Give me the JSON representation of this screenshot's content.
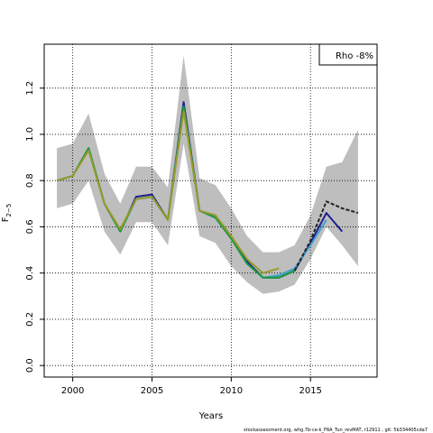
{
  "chart_data": {
    "type": "line",
    "title": "",
    "xlabel": "Years",
    "ylabel_main": "F",
    "ylabel_sub": "2−5",
    "xlim": [
      1998.2,
      2019.2
    ],
    "ylim": [
      -0.05,
      1.39
    ],
    "x_ticks": [
      2000,
      2005,
      2010,
      2015
    ],
    "y_ticks": [
      0.0,
      0.2,
      0.4,
      0.6,
      0.8,
      1.0,
      1.2
    ],
    "y_tick_labels": [
      "0.0",
      "0.2",
      "0.4",
      "0.6",
      "0.8",
      "1.0",
      "1.2"
    ],
    "grid": true,
    "legend": {
      "placement": "top-right",
      "entries": [
        "Rho -8%"
      ]
    },
    "band": {
      "color": "#bebebe",
      "x": [
        1999,
        2000,
        2001,
        2002,
        2003,
        2004,
        2005,
        2006,
        2007,
        2008,
        2009,
        2010,
        2011,
        2012,
        2013,
        2014,
        2015,
        2016,
        2017,
        2018
      ],
      "upper": [
        0.94,
        0.96,
        1.09,
        0.83,
        0.7,
        0.86,
        0.86,
        0.77,
        1.34,
        0.81,
        0.78,
        0.68,
        0.56,
        0.49,
        0.49,
        0.52,
        0.65,
        0.86,
        0.88,
        1.02
      ],
      "lower": [
        0.68,
        0.7,
        0.8,
        0.58,
        0.48,
        0.62,
        0.62,
        0.52,
        0.96,
        0.56,
        0.53,
        0.43,
        0.36,
        0.31,
        0.32,
        0.35,
        0.46,
        0.6,
        0.52,
        0.43
      ]
    },
    "series": [
      {
        "color": "#1f1f8f",
        "x": [
          1999,
          2000,
          2001,
          2002,
          2003,
          2004,
          2005,
          2006,
          2007,
          2008,
          2009,
          2010,
          2011,
          2012,
          2013,
          2014,
          2015,
          2016,
          2017
        ],
        "values": [
          0.8,
          0.82,
          0.94,
          0.7,
          0.58,
          0.73,
          0.74,
          0.63,
          1.14,
          0.67,
          0.64,
          0.55,
          0.45,
          0.38,
          0.38,
          0.41,
          0.53,
          0.66,
          0.58
        ]
      },
      {
        "color": "#3fa0d0",
        "x": [
          1999,
          2000,
          2001,
          2002,
          2003,
          2004,
          2005,
          2006,
          2007,
          2008,
          2009,
          2010,
          2011,
          2012,
          2013,
          2014,
          2015,
          2016
        ],
        "values": [
          0.8,
          0.82,
          0.94,
          0.7,
          0.58,
          0.72,
          0.73,
          0.63,
          1.12,
          0.67,
          0.64,
          0.55,
          0.44,
          0.38,
          0.39,
          0.42,
          0.52,
          0.63
        ]
      },
      {
        "color": "#1a9a3a",
        "x": [
          1999,
          2000,
          2001,
          2002,
          2003,
          2004,
          2005,
          2006,
          2007,
          2008,
          2009,
          2010,
          2011,
          2012,
          2013,
          2014
        ],
        "values": [
          0.8,
          0.82,
          0.94,
          0.7,
          0.58,
          0.72,
          0.73,
          0.63,
          1.12,
          0.67,
          0.64,
          0.55,
          0.44,
          0.38,
          0.38,
          0.41
        ]
      },
      {
        "color": "#9a9a2a",
        "x": [
          1999,
          2000,
          2001,
          2002,
          2003,
          2004,
          2005,
          2006,
          2007,
          2008,
          2009,
          2010,
          2011,
          2012,
          2013
        ],
        "values": [
          0.8,
          0.82,
          0.93,
          0.7,
          0.59,
          0.72,
          0.73,
          0.63,
          1.1,
          0.67,
          0.65,
          0.56,
          0.46,
          0.4,
          0.42
        ]
      },
      {
        "color": "#222222",
        "dashed": true,
        "x": [
          2014,
          2015,
          2016,
          2017,
          2018
        ],
        "values": [
          0.41,
          0.54,
          0.71,
          0.68,
          0.66
        ]
      }
    ],
    "footer": "stockassessment.org, whg.7b-ce-k_FRA_Tun_revMAT, r12911 , git: 5b334405cda7"
  }
}
